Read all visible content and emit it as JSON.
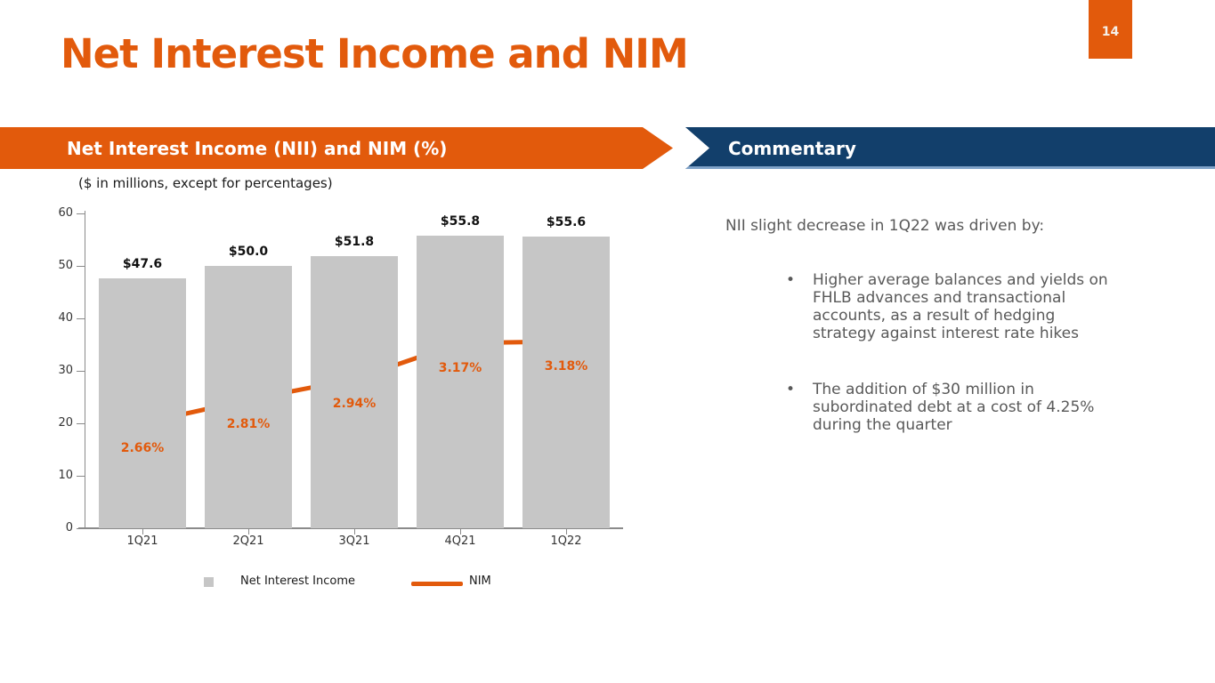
{
  "slide": {
    "title": "Net Interest Income and NIM",
    "page_number": "14"
  },
  "left_panel": {
    "banner": "Net Interest Income (NII) and NIM (%)",
    "subtitle": "($ in millions, except for percentages)"
  },
  "right_panel": {
    "banner": "Commentary",
    "heading": "NII slight decrease in 1Q22 was driven by:",
    "bullet_marker": "•",
    "bullets": [
      [
        "Higher average balances and yields on",
        "FHLB advances and transactional",
        "accounts, as a result of hedging",
        "strategy against interest rate hikes"
      ],
      [
        "The addition of $30 million in",
        "subordinated debt at a cost of 4.25%",
        "during the quarter"
      ]
    ]
  },
  "chart_data": {
    "type": "bar",
    "subtype": "bar-line-combo",
    "title": "Net Interest Income (NII) and NIM (%)",
    "units_note": "($ in millions, except for percentages)",
    "categories": [
      "1Q21",
      "2Q21",
      "3Q21",
      "4Q21",
      "1Q22"
    ],
    "series": [
      {
        "name": "Net Interest Income",
        "type": "bar",
        "values": [
          47.6,
          50.0,
          51.8,
          55.8,
          55.6
        ],
        "labels": [
          "$47.6",
          "$50.0",
          "$51.8",
          "$55.8",
          "$55.6"
        ],
        "color": "#C6C6C6"
      },
      {
        "name": "NIM",
        "type": "line",
        "values": [
          2.66,
          2.81,
          2.94,
          3.17,
          3.18
        ],
        "labels": [
          "2.66%",
          "2.81%",
          "2.94%",
          "3.17%",
          "3.18%"
        ],
        "color": "#E25A0C"
      }
    ],
    "y_axis": {
      "min": 0,
      "max": 60,
      "tick_step": 10,
      "ticks": [
        0,
        10,
        20,
        30,
        40,
        50,
        60
      ]
    },
    "xlabel": "",
    "ylabel": "",
    "grid": false,
    "legend_position": "bottom",
    "legend": [
      "Net Interest Income",
      "NIM"
    ]
  },
  "colors": {
    "accent_orange": "#E25A0C",
    "navy": "#123F6B",
    "banner_underline": "#7FA2C8",
    "bar_gray": "#C6C6C6",
    "text_gray": "#595959",
    "axis_gray": "#8A8A8A"
  }
}
